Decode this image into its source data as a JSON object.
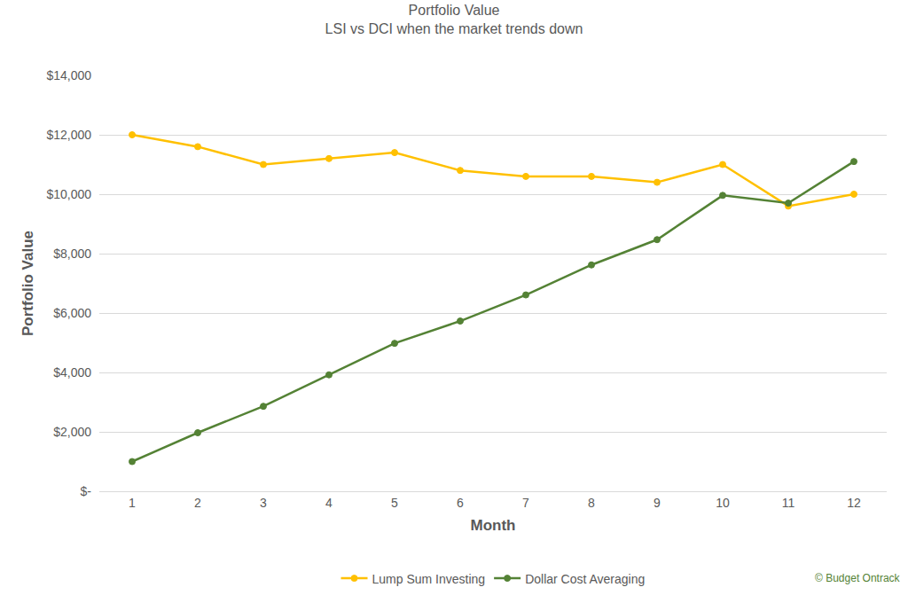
{
  "chart_data": {
    "type": "line",
    "title": "Portfolio Value",
    "subtitle": "LSI vs DCI when the market trends down",
    "x_label": "Month",
    "y_label": "Portfolio Value",
    "categories": [
      "1",
      "2",
      "3",
      "4",
      "5",
      "6",
      "7",
      "8",
      "9",
      "10",
      "11",
      "12"
    ],
    "series": [
      {
        "name": "Lump Sum Investing",
        "color": "#FFC000",
        "marker": "circle",
        "line_style": "solid",
        "values": [
          12000,
          11600,
          11000,
          11200,
          11400,
          10800,
          10600,
          10600,
          10400,
          11000,
          9600,
          10000
        ]
      },
      {
        "name": "Dollar Cost Averaging",
        "color": "#548235",
        "marker": "circle",
        "line_style": "solid",
        "values": [
          1000,
          1970,
          2860,
          3920,
          4980,
          5730,
          6610,
          7620,
          8470,
          9960,
          9700,
          11100
        ]
      }
    ],
    "ylim": [
      0,
      14000
    ],
    "yticks": [
      {
        "value": 0,
        "label": "$-"
      },
      {
        "value": 2000,
        "label": "$2,000"
      },
      {
        "value": 4000,
        "label": "$4,000"
      },
      {
        "value": 6000,
        "label": "$6,000"
      },
      {
        "value": 8000,
        "label": "$8,000"
      },
      {
        "value": 10000,
        "label": "$10,000"
      },
      {
        "value": 12000,
        "label": "$12,000"
      },
      {
        "value": 14000,
        "label": "$14,000"
      }
    ],
    "grid": true,
    "legend": "bottom",
    "annotations": [
      "© Budget Ontrack"
    ]
  }
}
